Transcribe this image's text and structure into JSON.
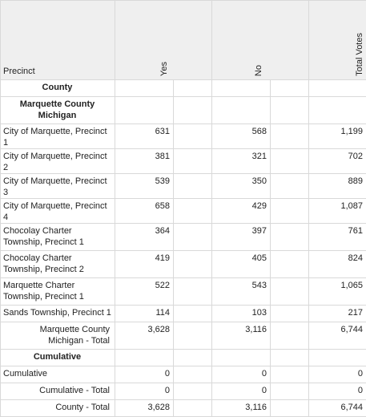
{
  "header": {
    "precinct": "Precinct",
    "yes": "Yes",
    "no": "No",
    "total_votes": "Total Votes"
  },
  "rows": [
    {
      "label": "County"
    },
    {
      "label": "Marquette County Michigan"
    },
    {
      "label": "City of Marquette, Precinct 1",
      "yes": 631,
      "no": 568,
      "total": "1,199"
    },
    {
      "label": "City of Marquette, Precinct 2",
      "yes": 381,
      "no": 321,
      "total": 702
    },
    {
      "label": "City of Marquette, Precinct 3",
      "yes": 539,
      "no": 350,
      "total": 889
    },
    {
      "label": "City of Marquette, Precinct 4",
      "yes": 658,
      "no": 429,
      "total": "1,087"
    },
    {
      "label": "Chocolay Charter Township, Precinct 1",
      "yes": 364,
      "no": 397,
      "total": 761
    },
    {
      "label": "Chocolay Charter Township, Precinct 2",
      "yes": 419,
      "no": 405,
      "total": 824
    },
    {
      "label": "Marquette Charter Township, Precinct 1",
      "yes": 522,
      "no": 543,
      "total": "1,065"
    },
    {
      "label": "Sands Township, Precinct 1",
      "yes": 114,
      "no": 103,
      "total": 217
    },
    {
      "label": "Marquette County Michigan - Total",
      "yes": "3,628",
      "no": "3,116",
      "total": "6,744"
    },
    {
      "label": "Cumulative"
    },
    {
      "label": "Cumulative",
      "yes": 0,
      "no": 0,
      "total": 0
    },
    {
      "label": "Cumulative - Total",
      "yes": 0,
      "no": 0,
      "total": 0
    },
    {
      "label": "County - Total",
      "yes": "3,628",
      "no": "3,116",
      "total": "6,744"
    }
  ]
}
